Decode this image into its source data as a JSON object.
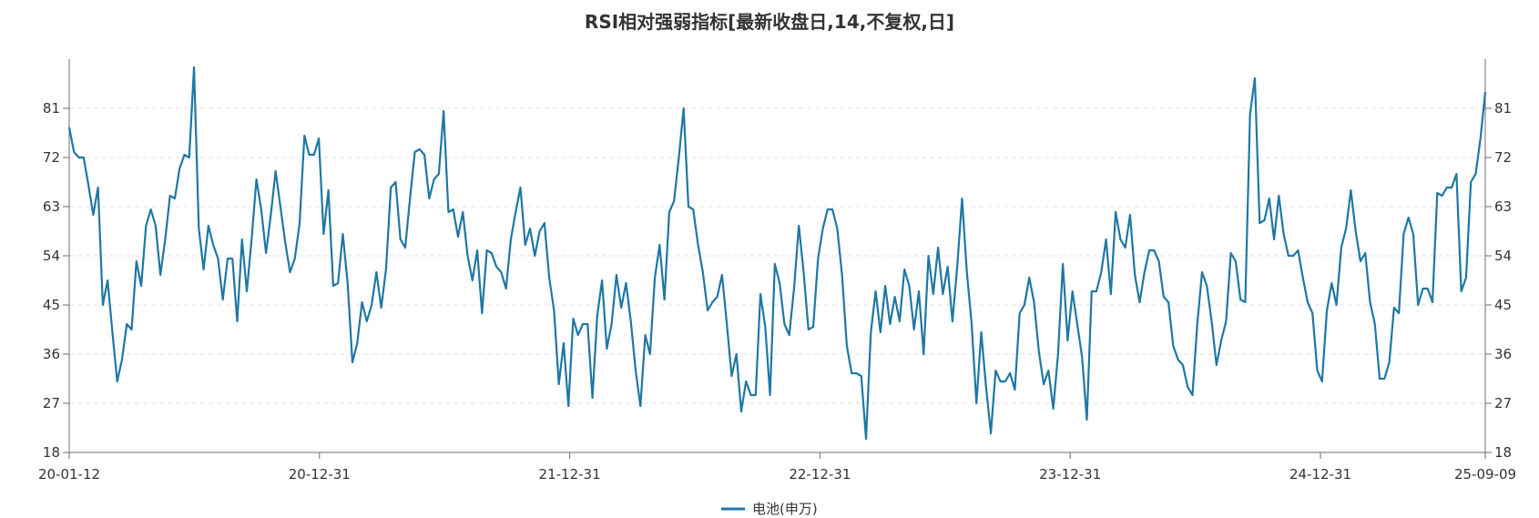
{
  "chart_data": {
    "type": "line",
    "title": "RSI相对强弱指标[最新收盘日,14,不复权,日]",
    "xlabel": "",
    "ylabel": "",
    "x_tick_labels": [
      "20-01-12",
      "20-12-31",
      "21-12-31",
      "22-12-31",
      "23-12-31",
      "24-12-31",
      "25-09-09"
    ],
    "y_ticks": [
      18,
      27,
      36,
      45,
      54,
      63,
      72,
      81
    ],
    "ylim": [
      18,
      90
    ],
    "grid": "horizontal dashed",
    "legend_position": "bottom-center",
    "color": "#1f77a4",
    "series": [
      {
        "name": "电池(申万)",
        "values": [
          77.5,
          73,
          72,
          72,
          67,
          61.5,
          66.5,
          45,
          49.5,
          40,
          31,
          35,
          41.5,
          40.5,
          53,
          48.5,
          59.5,
          62.5,
          59.5,
          50.5,
          57,
          65,
          64.5,
          70,
          72.5,
          72,
          88.5,
          59,
          51.5,
          59.5,
          56,
          53.5,
          46,
          53.5,
          53.5,
          42,
          57,
          47.5,
          57,
          68,
          62.5,
          54.5,
          61.5,
          69.5,
          63,
          56.5,
          51,
          53.5,
          60,
          76,
          72.5,
          72.5,
          75.5,
          58,
          66,
          48.5,
          49,
          58,
          49,
          34.5,
          38,
          45.5,
          42,
          45,
          51,
          44.5,
          51.5,
          66.5,
          67.5,
          57,
          55.5,
          64.5,
          73,
          73.5,
          72.5,
          64.5,
          68,
          69,
          80.5,
          62,
          62.5,
          57.5,
          62,
          54,
          49.5,
          55,
          43.5,
          55,
          54.5,
          52,
          51,
          48,
          57,
          62,
          66.5,
          56,
          59,
          54,
          58.5,
          60,
          50,
          44,
          30.5,
          38,
          26.5,
          42.5,
          39.5,
          41.5,
          41.5,
          28,
          43,
          49.5,
          37,
          41.5,
          50.5,
          44.5,
          49,
          42,
          33,
          26.5,
          39.5,
          36,
          50,
          56,
          46,
          62,
          64,
          72,
          81,
          63,
          62.5,
          56,
          51,
          44,
          45.5,
          46.5,
          50.5,
          41.5,
          32,
          36,
          25.5,
          31,
          28.5,
          28.5,
          47,
          41,
          28.5,
          52.5,
          49,
          41.5,
          39.5,
          48,
          59.5,
          51,
          40.5,
          41,
          53.5,
          59,
          62.5,
          62.5,
          59,
          50.5,
          37.5,
          32.5,
          32.5,
          32,
          20.5,
          40,
          47.5,
          40,
          48.5,
          41.5,
          46.5,
          42,
          51.5,
          48.5,
          40.5,
          47.5,
          36,
          54,
          47,
          55.5,
          47,
          52,
          42,
          52,
          64.5,
          51,
          41.5,
          27,
          40,
          30,
          21.5,
          33,
          31,
          31,
          32.5,
          29.5,
          43.5,
          45,
          50,
          45.5,
          36.5,
          30.5,
          33,
          26,
          36,
          52.5,
          38.5,
          47.5,
          41.5,
          35.5,
          24,
          47.5,
          47.5,
          51,
          57,
          47,
          62,
          57,
          55.5,
          61.5,
          50.5,
          45.5,
          51,
          55,
          55,
          53,
          46.5,
          45.5,
          37.5,
          35,
          34,
          30,
          28.5,
          41.5,
          51,
          48.5,
          42,
          34,
          38.5,
          42,
          54.5,
          53,
          46,
          45.5,
          80,
          86.5,
          60,
          60.5,
          64.5,
          57,
          65,
          58,
          54,
          54,
          55,
          50,
          45.5,
          43.5,
          33,
          31,
          44,
          49,
          45,
          55.5,
          59,
          66,
          58.5,
          53,
          54.5,
          45.5,
          41.5,
          31.5,
          31.5,
          34.5,
          44.5,
          43.5,
          58,
          61,
          58,
          45,
          48,
          48,
          45.5,
          65.5,
          65,
          66.5,
          66.5,
          69,
          47.5,
          50,
          67.5,
          69,
          75.5,
          84
        ]
      }
    ]
  }
}
